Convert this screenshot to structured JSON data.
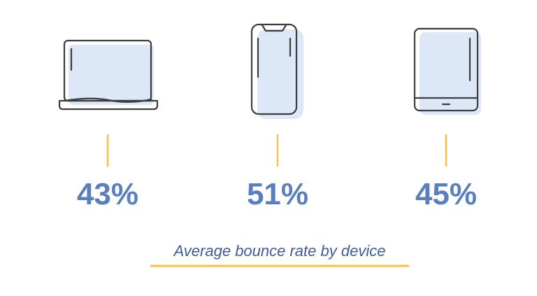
{
  "chart_data": {
    "type": "pictograph",
    "title": "Average bounce rate by device",
    "values": [
      43,
      51,
      45
    ],
    "value_labels": [
      "43%",
      "51%",
      "45%"
    ],
    "color": "#5a7fbf"
  }
}
